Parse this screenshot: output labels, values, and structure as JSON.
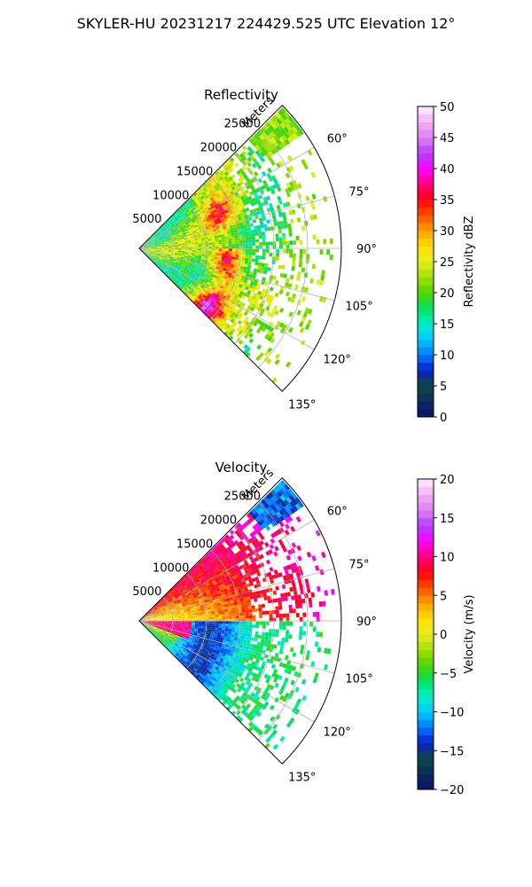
{
  "page_title": "SKYLER-HU  20231217  224429.525 UTC Elevation 12°",
  "chart_data": [
    {
      "type": "heatmap",
      "projection": "polar-sector",
      "title": "Reflectivity",
      "radial_axis_label": "Meters",
      "radial_ticks": [
        5000,
        10000,
        15000,
        20000,
        25000
      ],
      "radial_tick_labels": [
        "5000",
        "10000",
        "15000",
        "20000",
        "25000"
      ],
      "angle_ticks": [
        60,
        75,
        90,
        105,
        120,
        135
      ],
      "angle_tick_labels": [
        "60°",
        "75°",
        "90°",
        "105°",
        "120°",
        "135°"
      ],
      "angle_range": [
        45,
        135
      ],
      "range_max": 30000,
      "colorbar": {
        "label": "Reflectivity dBZ",
        "min": 0,
        "max": 50,
        "ticks": [
          0,
          5,
          10,
          15,
          20,
          25,
          30,
          35,
          40,
          45,
          50
        ],
        "tick_labels": [
          "0",
          "5",
          "10",
          "15",
          "20",
          "25",
          "30",
          "35",
          "40",
          "45",
          "50"
        ],
        "stops": [
          "#06136b",
          "#0d2a5e",
          "#0f4a3c",
          "#0a1fc8",
          "#0078ff",
          "#00c8ff",
          "#00f0c8",
          "#00e060",
          "#50d400",
          "#a0e000",
          "#e6ee20",
          "#ffe000",
          "#ffa000",
          "#ff5000",
          "#ff0010",
          "#ff0080",
          "#ff00ff",
          "#b040ff",
          "#e080f0",
          "#f0b0f0",
          "#ffeefd"
        ]
      }
    },
    {
      "type": "heatmap",
      "projection": "polar-sector",
      "title": "Velocity",
      "radial_axis_label": "Meters",
      "radial_ticks": [
        5000,
        10000,
        15000,
        20000,
        25000
      ],
      "radial_tick_labels": [
        "5000",
        "10000",
        "15000",
        "20000",
        "25000"
      ],
      "angle_ticks": [
        60,
        75,
        90,
        105,
        120,
        135
      ],
      "angle_tick_labels": [
        "60°",
        "75°",
        "90°",
        "105°",
        "120°",
        "135°"
      ],
      "angle_range": [
        45,
        135
      ],
      "range_max": 30000,
      "colorbar": {
        "label": "Velocity (m/s)",
        "min": -20,
        "max": 20,
        "ticks": [
          -20,
          -15,
          -10,
          -5,
          0,
          5,
          10,
          15,
          20
        ],
        "tick_labels": [
          "−20",
          "−15",
          "−10",
          "−5",
          "0",
          "5",
          "10",
          "15",
          "20"
        ],
        "stops": [
          "#06136b",
          "#0d2a5e",
          "#0f4a3c",
          "#0a1fc8",
          "#0078ff",
          "#00c8ff",
          "#00f0c8",
          "#00e060",
          "#50d400",
          "#a0e000",
          "#e6ee20",
          "#ffe000",
          "#ffa000",
          "#ff5000",
          "#ff0010",
          "#ff0080",
          "#ff00ff",
          "#b040ff",
          "#e080f0",
          "#f0b0f0",
          "#ffeefd"
        ]
      }
    }
  ]
}
